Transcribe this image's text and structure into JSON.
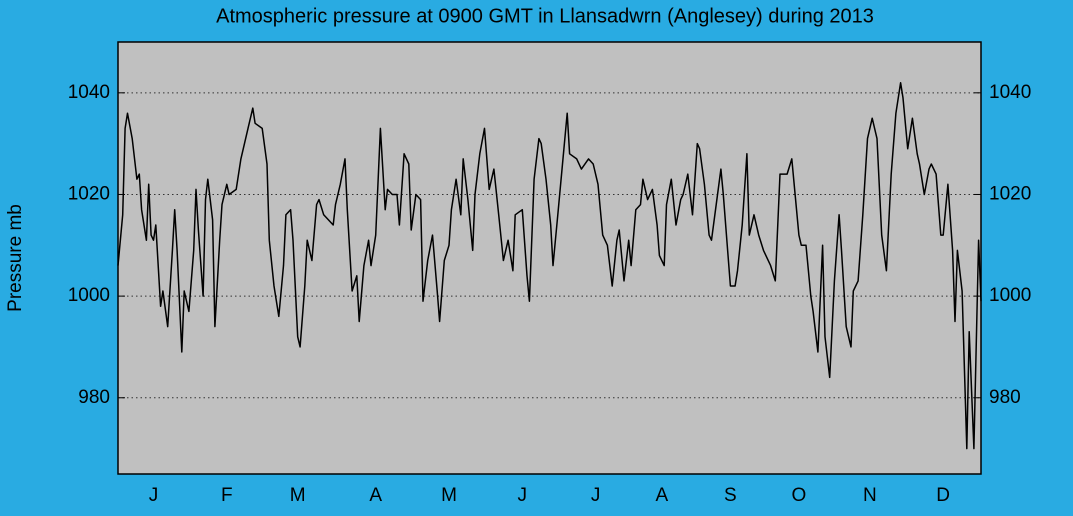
{
  "chart_data": {
    "type": "line",
    "title": "Atmospheric pressure at 0900 GMT in Llansadwrn (Anglesey) during 2013",
    "y_label": "Pressure mb",
    "x": [
      0,
      2,
      3,
      4,
      6,
      8,
      9,
      10,
      12,
      13,
      14,
      15,
      16,
      18,
      19,
      21,
      23,
      24,
      25,
      27,
      28,
      30,
      31,
      32,
      33,
      34,
      36,
      37,
      38,
      40,
      41,
      43,
      44,
      46,
      47,
      50,
      52,
      55,
      57,
      58,
      61,
      63,
      64,
      66,
      68,
      70,
      71,
      73,
      74,
      76,
      77,
      79,
      80,
      82,
      84,
      85,
      87,
      91,
      92,
      94,
      96,
      97,
      99,
      101,
      102,
      104,
      106,
      107,
      109,
      111,
      113,
      114,
      116,
      118,
      119,
      121,
      123,
      124,
      126,
      128,
      129,
      131,
      133,
      135,
      136,
      138,
      140,
      141,
      143,
      145,
      146,
      148,
      150,
      151,
      153,
      155,
      157,
      159,
      161,
      163,
      165,
      167,
      168,
      171,
      173,
      174,
      176,
      178,
      179,
      181,
      183,
      184,
      186,
      188,
      190,
      191,
      194,
      196,
      199,
      201,
      203,
      205,
      207,
      209,
      211,
      212,
      214,
      216,
      217,
      219,
      221,
      222,
      224,
      226,
      228,
      229,
      231,
      232,
      234,
      236,
      238,
      239,
      241,
      243,
      245,
      246,
      248,
      250,
      251,
      253,
      255,
      256,
      259,
      261,
      262,
      264,
      266,
      267,
      269,
      271,
      273,
      276,
      278,
      280,
      283,
      285,
      288,
      289,
      291,
      293,
      294,
      296,
      298,
      299,
      301,
      303,
      305,
      306,
      308,
      310,
      311,
      313,
      315,
      317,
      319,
      321,
      323,
      325,
      327,
      329,
      331,
      332,
      334,
      336,
      338,
      339,
      341,
      343,
      344,
      346,
      348,
      349,
      351,
      353,
      354,
      355,
      357,
      359,
      360,
      362,
      364,
      365
    ],
    "series": [
      {
        "name": "Pressure",
        "color": "#000000",
        "values": [
          1006,
          1016,
          1033,
          1036,
          1031,
          1023,
          1024,
          1017,
          1011,
          1022,
          1012,
          1011,
          1014,
          998,
          1001,
          994,
          1009,
          1017,
          1009,
          989,
          1001,
          997,
          1003,
          1009,
          1021,
          1013,
          1000,
          1019,
          1023,
          1015,
          994,
          1011,
          1018,
          1022,
          1020,
          1021,
          1027,
          1033,
          1037,
          1034,
          1033,
          1026,
          1011,
          1002,
          996,
          1006,
          1016,
          1017,
          1011,
          992,
          990,
          1002,
          1011,
          1007,
          1018,
          1019,
          1016,
          1014,
          1018,
          1022,
          1027,
          1017,
          1001,
          1004,
          995,
          1006,
          1011,
          1006,
          1012,
          1033,
          1017,
          1021,
          1020,
          1020,
          1014,
          1028,
          1026,
          1013,
          1020,
          1019,
          999,
          1007,
          1012,
          1001,
          995,
          1007,
          1010,
          1017,
          1023,
          1016,
          1027,
          1019,
          1009,
          1020,
          1028,
          1033,
          1021,
          1025,
          1016,
          1007,
          1011,
          1005,
          1016,
          1017,
          1004,
          999,
          1023,
          1031,
          1030,
          1023,
          1014,
          1006,
          1016,
          1026,
          1036,
          1028,
          1027,
          1025,
          1027,
          1026,
          1022,
          1012,
          1010,
          1002,
          1011,
          1013,
          1003,
          1011,
          1006,
          1017,
          1018,
          1023,
          1019,
          1021,
          1014,
          1008,
          1006,
          1018,
          1023,
          1014,
          1019,
          1020,
          1024,
          1016,
          1030,
          1029,
          1022,
          1012,
          1011,
          1018,
          1025,
          1020,
          1002,
          1002,
          1005,
          1014,
          1028,
          1012,
          1016,
          1012,
          1009,
          1006,
          1003,
          1024,
          1024,
          1027,
          1012,
          1010,
          1010,
          1000,
          997,
          989,
          1010,
          992,
          984,
          1003,
          1016,
          1009,
          994,
          990,
          1001,
          1003,
          1016,
          1031,
          1035,
          1031,
          1012,
          1005,
          1024,
          1036,
          1042,
          1039,
          1029,
          1035,
          1028,
          1026,
          1020,
          1025,
          1026,
          1024,
          1012,
          1012,
          1022,
          1009,
          995,
          1009,
          1001,
          970,
          993,
          970,
          1011,
          999
        ]
      }
    ],
    "xlim": [
      0,
      365
    ],
    "xticks": [
      {
        "value": 15,
        "label": "J"
      },
      {
        "value": 46,
        "label": "F"
      },
      {
        "value": 76,
        "label": "M"
      },
      {
        "value": 109,
        "label": "A"
      },
      {
        "value": 140,
        "label": "M"
      },
      {
        "value": 171,
        "label": "J"
      },
      {
        "value": 202,
        "label": "J"
      },
      {
        "value": 230,
        "label": "A"
      },
      {
        "value": 259,
        "label": "S"
      },
      {
        "value": 288,
        "label": "O"
      },
      {
        "value": 318,
        "label": "N"
      },
      {
        "value": 349,
        "label": "D"
      }
    ],
    "ylim": [
      965,
      1050
    ],
    "yticks": [
      980,
      1000,
      1020,
      1040
    ],
    "grid": true
  }
}
